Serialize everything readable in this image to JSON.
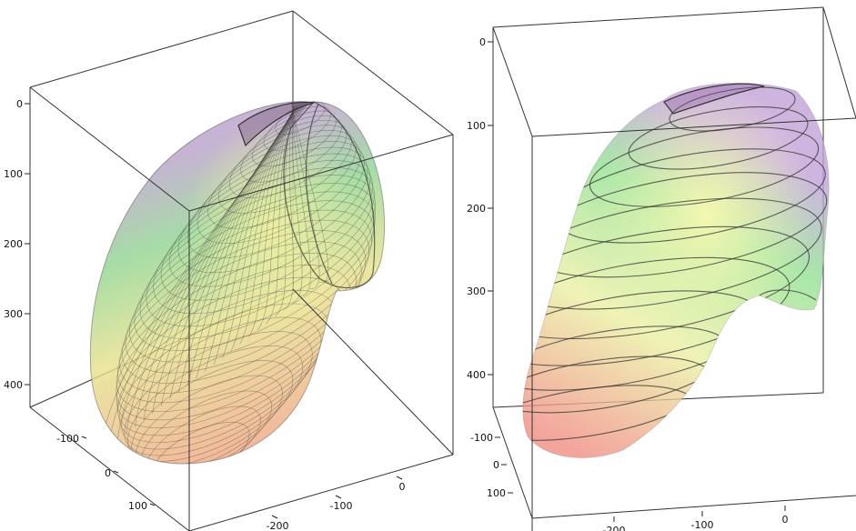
{
  "chart_data": [
    {
      "type": "surface3d",
      "rendering": "wireframe-mesh",
      "axes": {
        "vertical": {
          "ticks": [
            "0",
            "100",
            "200",
            "300",
            "400"
          ]
        },
        "depth": {
          "ticks": [
            "-100",
            "0",
            "100"
          ]
        },
        "horizontal": {
          "ticks": [
            "0",
            "-100",
            "-200"
          ]
        }
      },
      "colors": {
        "top": "#b9a0c8",
        "middle": "#8fd48f",
        "bottom": "#f0a080",
        "highlight": "#f4f0a0"
      }
    },
    {
      "type": "surface3d",
      "rendering": "smooth-with-contours",
      "axes": {
        "vertical": {
          "ticks": [
            "0",
            "100",
            "200",
            "300",
            "400"
          ]
        },
        "depth": {
          "ticks": [
            "-100",
            "0",
            "100"
          ]
        },
        "horizontal": {
          "ticks": [
            "-200",
            "-100",
            "0"
          ]
        }
      },
      "colors": {
        "top": "#c0a0d8",
        "middle": "#90e090",
        "bottom": "#f08a80",
        "highlight": "#f8f8b0"
      }
    }
  ]
}
